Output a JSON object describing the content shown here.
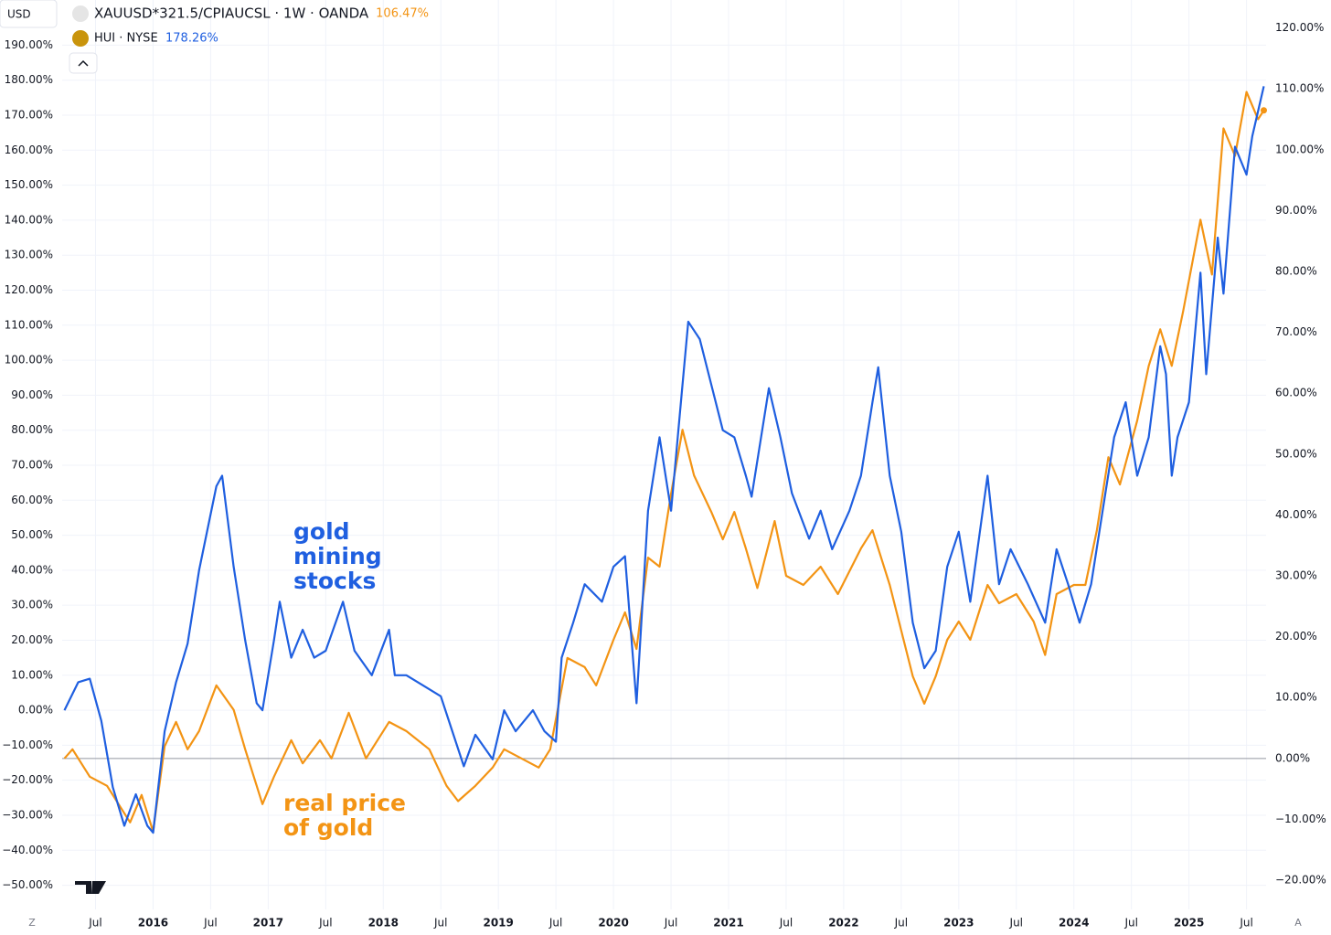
{
  "header": {
    "currency": "USD",
    "main_symbol": "XAUUSD*321.5/CPIAUCSL · 1W · OANDA",
    "compare_symbol": "HUI · NYSE",
    "left_button": "Z",
    "right_button": "A"
  },
  "chart_data": {
    "type": "line",
    "x": [],
    "series": [
      {
        "name": "HUI · NYSE",
        "color": "#1f5fe0",
        "axis": "y",
        "last_label": "178.26%",
        "x": [
          2015.23,
          2015.35,
          2015.45,
          2015.55,
          2015.65,
          2015.75,
          2015.85,
          2015.95,
          2016.0,
          2016.1,
          2016.2,
          2016.3,
          2016.4,
          2016.55,
          2016.6,
          2016.7,
          2016.8,
          2016.9,
          2016.95,
          2017.05,
          2017.1,
          2017.2,
          2017.3,
          2017.4,
          2017.5,
          2017.65,
          2017.75,
          2017.9,
          2018.05,
          2018.1,
          2018.2,
          2018.35,
          2018.5,
          2018.6,
          2018.7,
          2018.8,
          2018.95,
          2019.05,
          2019.15,
          2019.3,
          2019.4,
          2019.5,
          2019.55,
          2019.65,
          2019.75,
          2019.9,
          2020.0,
          2020.1,
          2020.2,
          2020.3,
          2020.4,
          2020.5,
          2020.6,
          2020.65,
          2020.75,
          2020.85,
          2020.95,
          2021.05,
          2021.15,
          2021.2,
          2021.35,
          2021.45,
          2021.55,
          2021.7,
          2021.8,
          2021.9,
          2022.05,
          2022.15,
          2022.25,
          2022.3,
          2022.4,
          2022.5,
          2022.6,
          2022.7,
          2022.8,
          2022.9,
          2023.0,
          2023.1,
          2023.25,
          2023.35,
          2023.45,
          2023.6,
          2023.75,
          2023.85,
          2023.95,
          2024.05,
          2024.15,
          2024.25,
          2024.35,
          2024.45,
          2024.55,
          2024.65,
          2024.75,
          2024.8,
          2024.85,
          2024.9,
          2025.0,
          2025.1,
          2025.15,
          2025.25,
          2025.3,
          2025.4,
          2025.5,
          2025.55,
          2025.65
        ],
        "values": [
          0,
          8,
          9,
          -3,
          -22,
          -33,
          -24,
          -33,
          -35,
          -6,
          8,
          19,
          40,
          64,
          67,
          41,
          20,
          2,
          0,
          20,
          31,
          15,
          23,
          15,
          17,
          31,
          17,
          10,
          23,
          10,
          10,
          7,
          4,
          -6,
          -16,
          -7,
          -14,
          0,
          -6,
          0,
          -6,
          -9,
          15,
          25,
          36,
          31,
          41,
          44,
          2,
          57,
          78,
          57,
          93,
          111,
          106,
          93,
          80,
          78,
          67,
          61,
          92,
          78,
          62,
          49,
          57,
          46,
          57,
          67,
          88,
          98,
          67,
          51,
          25,
          12,
          17,
          41,
          51,
          31,
          67,
          36,
          46,
          36,
          25,
          46,
          36,
          25,
          36,
          57,
          78,
          88,
          67,
          78,
          104,
          96,
          67,
          78,
          88,
          125,
          96,
          135,
          119,
          161,
          153,
          164,
          178.26
        ]
      },
      {
        "name": "XAUUSD*321.5/CPIAUCSL · 1W · OANDA",
        "color": "#f39414",
        "axis": "y2",
        "last_label": "106.47%",
        "x": [
          2015.23,
          2015.3,
          2015.45,
          2015.6,
          2015.7,
          2015.8,
          2015.9,
          2016.0,
          2016.1,
          2016.2,
          2016.3,
          2016.4,
          2016.55,
          2016.7,
          2016.8,
          2016.95,
          2017.05,
          2017.2,
          2017.3,
          2017.45,
          2017.55,
          2017.7,
          2017.85,
          2018.05,
          2018.2,
          2018.4,
          2018.55,
          2018.65,
          2018.8,
          2018.95,
          2019.05,
          2019.2,
          2019.35,
          2019.45,
          2019.6,
          2019.75,
          2019.85,
          2020.0,
          2020.1,
          2020.2,
          2020.3,
          2020.4,
          2020.5,
          2020.6,
          2020.7,
          2020.85,
          2020.95,
          2021.05,
          2021.15,
          2021.25,
          2021.4,
          2021.5,
          2021.65,
          2021.8,
          2021.95,
          2022.15,
          2022.25,
          2022.4,
          2022.5,
          2022.6,
          2022.7,
          2022.8,
          2022.9,
          2023.0,
          2023.1,
          2023.25,
          2023.35,
          2023.5,
          2023.65,
          2023.75,
          2023.85,
          2024.0,
          2024.1,
          2024.2,
          2024.3,
          2024.4,
          2024.55,
          2024.65,
          2024.75,
          2024.85,
          2024.95,
          2025.1,
          2025.2,
          2025.3,
          2025.4,
          2025.5,
          2025.6,
          2025.65
        ],
        "values": [
          0,
          1.5,
          -3,
          -4.5,
          -7.5,
          -10.5,
          -6,
          -12,
          2,
          6,
          1.5,
          4.5,
          12,
          8,
          1.5,
          -7.5,
          -3,
          3,
          -0.8,
          3,
          0,
          7.5,
          0,
          6,
          4.5,
          1.5,
          -4.5,
          -7,
          -4.5,
          -1.5,
          1.5,
          0,
          -1.5,
          1.5,
          16.5,
          15,
          12,
          19.5,
          24,
          18,
          33,
          31.5,
          43.5,
          54,
          46.5,
          40.5,
          36,
          40.5,
          34.5,
          28,
          39,
          30,
          28.5,
          31.5,
          27,
          34.5,
          37.5,
          28.5,
          21,
          13.5,
          9,
          13.5,
          19.5,
          22.5,
          19.5,
          28.5,
          25.5,
          27,
          22.5,
          17,
          27,
          28.5,
          28.5,
          37.5,
          49.5,
          45,
          55.5,
          64.5,
          70.5,
          64.5,
          73.5,
          88.5,
          79.5,
          103.5,
          99,
          109.5,
          105,
          106.47
        ]
      }
    ],
    "xlim": [
      2015.21,
      2025.67
    ],
    "xticks": [
      {
        "value": 2015.5,
        "label": "Jul"
      },
      {
        "value": 2016,
        "label": "2016"
      },
      {
        "value": 2016.5,
        "label": "Jul"
      },
      {
        "value": 2017,
        "label": "2017"
      },
      {
        "value": 2017.5,
        "label": "Jul"
      },
      {
        "value": 2018,
        "label": "2018"
      },
      {
        "value": 2018.5,
        "label": "Jul"
      },
      {
        "value": 2019,
        "label": "2019"
      },
      {
        "value": 2019.5,
        "label": "Jul"
      },
      {
        "value": 2020,
        "label": "2020"
      },
      {
        "value": 2020.5,
        "label": "Jul"
      },
      {
        "value": 2021,
        "label": "2021"
      },
      {
        "value": 2021.5,
        "label": "Jul"
      },
      {
        "value": 2022,
        "label": "2022"
      },
      {
        "value": 2022.5,
        "label": "Jul"
      },
      {
        "value": 2023,
        "label": "2023"
      },
      {
        "value": 2023.5,
        "label": "Jul"
      },
      {
        "value": 2024,
        "label": "2024"
      },
      {
        "value": 2024.5,
        "label": "Jul"
      },
      {
        "value": 2025,
        "label": "2025"
      },
      {
        "value": 2025.5,
        "label": "Jul"
      }
    ],
    "ylim": [
      -56.9,
      202.9
    ],
    "yticks": [
      {
        "value": -50,
        "label": "−50.00%"
      },
      {
        "value": -40,
        "label": "−40.00%"
      },
      {
        "value": -30,
        "label": "−30.00%"
      },
      {
        "value": -20,
        "label": "−20.00%"
      },
      {
        "value": -10,
        "label": "−10.00%"
      },
      {
        "value": 0,
        "label": "0.00%"
      },
      {
        "value": 10,
        "label": "10.00%"
      },
      {
        "value": 20,
        "label": "20.00%"
      },
      {
        "value": 30,
        "label": "30.00%"
      },
      {
        "value": 40,
        "label": "40.00%"
      },
      {
        "value": 50,
        "label": "50.00%"
      },
      {
        "value": 60,
        "label": "60.00%"
      },
      {
        "value": 70,
        "label": "70.00%"
      },
      {
        "value": 80,
        "label": "80.00%"
      },
      {
        "value": 90,
        "label": "90.00%"
      },
      {
        "value": 100,
        "label": "100.00%"
      },
      {
        "value": 110,
        "label": "110.00%"
      },
      {
        "value": 120,
        "label": "120.00%"
      },
      {
        "value": 130,
        "label": "130.00%"
      },
      {
        "value": 140,
        "label": "140.00%"
      },
      {
        "value": 150,
        "label": "150.00%"
      },
      {
        "value": 160,
        "label": "160.00%"
      },
      {
        "value": 170,
        "label": "170.00%"
      },
      {
        "value": 180,
        "label": "180.00%"
      },
      {
        "value": 190,
        "label": "190.00%"
      }
    ],
    "y2lim": [
      -24.8,
      124.6
    ],
    "y2ticks": [
      {
        "value": -20,
        "label": "−20.00%"
      },
      {
        "value": -10,
        "label": "−10.00%"
      },
      {
        "value": 0,
        "label": "0.00%"
      },
      {
        "value": 10,
        "label": "10.00%"
      },
      {
        "value": 20,
        "label": "20.00%"
      },
      {
        "value": 30,
        "label": "30.00%"
      },
      {
        "value": 40,
        "label": "40.00%"
      },
      {
        "value": 50,
        "label": "50.00%"
      },
      {
        "value": 60,
        "label": "60.00%"
      },
      {
        "value": 70,
        "label": "70.00%"
      },
      {
        "value": 80,
        "label": "80.00%"
      },
      {
        "value": 90,
        "label": "90.00%"
      },
      {
        "value": 100,
        "label": "100.00%"
      },
      {
        "value": 110,
        "label": "110.00%"
      },
      {
        "value": 120,
        "label": "120.00%"
      }
    ],
    "grid": true,
    "annotations": [
      {
        "lines": [
          "gold",
          "mining",
          "stocks"
        ],
        "color": "#1f5fe0"
      },
      {
        "lines": [
          "real price",
          "of gold"
        ],
        "color": "#f39414"
      }
    ]
  }
}
